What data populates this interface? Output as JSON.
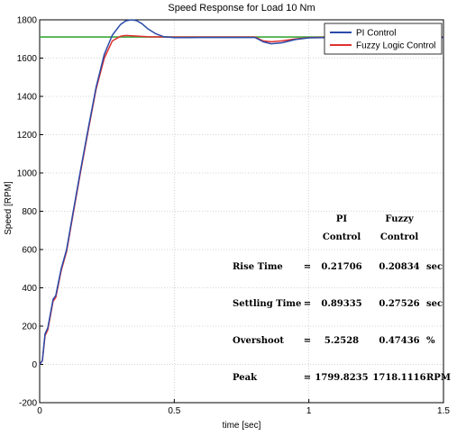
{
  "chart_data": {
    "type": "line",
    "title": "Speed Response for Load 10 Nm",
    "xlabel": "time [sec]",
    "ylabel": "Speed [RPM]",
    "xlim": [
      0,
      1.5
    ],
    "ylim": [
      -200,
      1800
    ],
    "xticks": [
      0,
      0.5,
      1,
      1.5
    ],
    "xtick_labels": [
      "0",
      "0.5",
      "1",
      "1.5"
    ],
    "yticks": [
      -200,
      0,
      200,
      400,
      600,
      800,
      1000,
      1200,
      1400,
      1600,
      1800
    ],
    "ytick_labels": [
      "-200",
      "0",
      "200",
      "400",
      "600",
      "800",
      "1000",
      "1200",
      "1400",
      "1600",
      "1800"
    ],
    "grid": true,
    "legend_position": "top-right",
    "series": [
      {
        "name": "PI Control",
        "color": "#2b4aa8",
        "x": [
          0,
          0.01,
          0.02,
          0.03,
          0.05,
          0.06,
          0.08,
          0.1,
          0.12,
          0.15,
          0.18,
          0.21,
          0.24,
          0.27,
          0.3,
          0.32,
          0.34,
          0.36,
          0.38,
          0.4,
          0.43,
          0.46,
          0.5,
          0.55,
          0.6,
          0.7,
          0.8,
          0.83,
          0.86,
          0.9,
          0.95,
          1.0,
          1.1,
          1.2,
          1.3,
          1.5
        ],
        "y": [
          0,
          20,
          160,
          190,
          340,
          360,
          500,
          600,
          760,
          1000,
          1230,
          1450,
          1620,
          1720,
          1775,
          1795,
          1800,
          1796,
          1780,
          1755,
          1728,
          1712,
          1707,
          1707,
          1708,
          1708,
          1708,
          1685,
          1675,
          1680,
          1697,
          1706,
          1708,
          1708,
          1708,
          1708
        ]
      },
      {
        "name": "Fuzzy Logic Control",
        "color": "#e03030",
        "x": [
          0,
          0.01,
          0.02,
          0.03,
          0.05,
          0.06,
          0.08,
          0.1,
          0.12,
          0.15,
          0.18,
          0.21,
          0.24,
          0.27,
          0.3,
          0.32,
          0.35,
          0.4,
          0.5,
          0.7,
          0.8,
          0.83,
          0.86,
          0.9,
          0.95,
          1.0,
          1.1,
          1.3,
          1.5
        ],
        "y": [
          0,
          20,
          150,
          180,
          330,
          350,
          490,
          590,
          750,
          990,
          1220,
          1440,
          1600,
          1690,
          1714,
          1718,
          1716,
          1712,
          1710,
          1710,
          1710,
          1690,
          1685,
          1690,
          1700,
          1707,
          1710,
          1710,
          1710
        ]
      },
      {
        "color": "#3aa83a",
        "x": [
          0,
          1.5
        ],
        "y": [
          1710,
          1710
        ]
      }
    ],
    "annotations": {
      "headers": [
        "PI\nControl",
        "Fuzzy\nControl"
      ],
      "rows": [
        {
          "label": "Rise Time",
          "eq": "=",
          "pi": "0.21706",
          "fuzzy": "0.20834",
          "unit": "sec"
        },
        {
          "label": "Settling Time",
          "eq": "=",
          "pi": "0.89335",
          "fuzzy": "0.27526",
          "unit": "sec"
        },
        {
          "label": "Overshoot",
          "eq": "=",
          "pi": "5.2528",
          "fuzzy": "0.47436",
          "unit": "%"
        },
        {
          "label": "Peak",
          "eq": "=",
          "pi": "1799.8235",
          "fuzzy": "1718.1116",
          "unit": "RPM"
        }
      ]
    }
  }
}
